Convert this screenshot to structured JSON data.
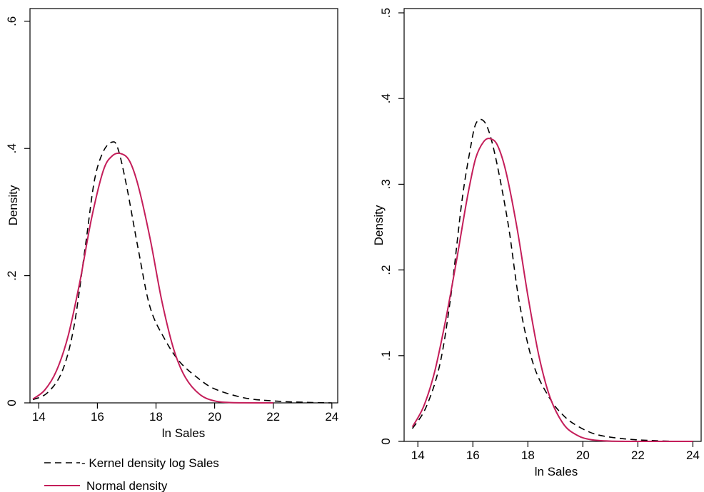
{
  "chart_data": [
    {
      "type": "line",
      "xlabel": "ln Sales",
      "ylabel": "Density",
      "xlim": [
        13.7,
        24.2
      ],
      "ylim": [
        0,
        0.62
      ],
      "xticks": [
        14,
        16,
        18,
        20,
        22,
        24
      ],
      "xtick_labels": [
        "14",
        "16",
        "18",
        "20",
        "22",
        "24"
      ],
      "yticks": [
        0,
        0.2,
        0.4,
        0.6
      ],
      "ytick_labels": [
        "0",
        ".2",
        ".4",
        ".6"
      ],
      "series": [
        {
          "name": "Kernel density log Sales",
          "style": "dashed",
          "color": "#000000",
          "x": [
            13.8,
            14.3,
            14.8,
            15.2,
            15.6,
            15.9,
            16.2,
            16.5,
            16.7,
            17.0,
            17.4,
            17.8,
            18.3,
            18.8,
            19.4,
            20.0,
            21.0,
            22.0,
            23.0,
            24.0
          ],
          "y": [
            0.005,
            0.016,
            0.05,
            0.12,
            0.25,
            0.35,
            0.395,
            0.41,
            0.4,
            0.34,
            0.24,
            0.15,
            0.1,
            0.065,
            0.04,
            0.022,
            0.008,
            0.003,
            0.001,
            0.0
          ]
        },
        {
          "name": "Normal density",
          "style": "solid",
          "color": "#c41e5a",
          "x": [
            13.8,
            14.2,
            14.6,
            15.0,
            15.4,
            15.8,
            16.2,
            16.5,
            16.8,
            17.1,
            17.4,
            17.8,
            18.2,
            18.6,
            19.0,
            19.5,
            20.0,
            20.5,
            21.0,
            22.0
          ],
          "y": [
            0.006,
            0.02,
            0.05,
            0.105,
            0.19,
            0.29,
            0.365,
            0.388,
            0.392,
            0.38,
            0.34,
            0.258,
            0.16,
            0.085,
            0.04,
            0.013,
            0.003,
            0.0006,
            0.0001,
            0.0
          ]
        }
      ],
      "legend": {
        "position": "bottom-left",
        "items": [
          {
            "label": "- Kernel density log Sales",
            "style": "dashed",
            "color": "#000000"
          },
          {
            "label": "Normal density",
            "style": "solid",
            "color": "#c41e5a"
          }
        ]
      }
    },
    {
      "type": "line",
      "xlabel": "ln Sales",
      "ylabel": "Density",
      "xlim": [
        13.5,
        24.3
      ],
      "ylim": [
        0,
        0.505
      ],
      "xticks": [
        14,
        16,
        18,
        20,
        22,
        24
      ],
      "xtick_labels": [
        "14",
        "16",
        "18",
        "20",
        "22",
        "24"
      ],
      "yticks": [
        0,
        0.1,
        0.2,
        0.3,
        0.4,
        0.5
      ],
      "ytick_labels": [
        "0",
        ".1",
        ".2",
        ".3",
        ".4",
        ".5"
      ],
      "series": [
        {
          "name": "Kernel density log Sales",
          "style": "dashed",
          "color": "#000000",
          "x": [
            13.8,
            14.3,
            14.8,
            15.2,
            15.6,
            15.9,
            16.1,
            16.35,
            16.6,
            16.9,
            17.3,
            17.7,
            18.2,
            18.8,
            19.3,
            19.8,
            20.5,
            21.5,
            22.5,
            23.5,
            24.0
          ],
          "y": [
            0.015,
            0.04,
            0.09,
            0.17,
            0.28,
            0.34,
            0.37,
            0.375,
            0.36,
            0.32,
            0.25,
            0.16,
            0.09,
            0.05,
            0.03,
            0.018,
            0.008,
            0.003,
            0.001,
            0.0,
            0.0
          ]
        },
        {
          "name": "Normal density",
          "style": "solid",
          "color": "#c41e5a",
          "x": [
            13.8,
            14.2,
            14.6,
            15.0,
            15.4,
            15.8,
            16.1,
            16.4,
            16.65,
            16.9,
            17.2,
            17.6,
            18.0,
            18.4,
            18.8,
            19.3,
            19.8,
            20.3,
            21.0,
            22.0,
            23.0,
            24.0
          ],
          "y": [
            0.017,
            0.04,
            0.08,
            0.14,
            0.21,
            0.285,
            0.33,
            0.35,
            0.353,
            0.345,
            0.315,
            0.25,
            0.17,
            0.1,
            0.052,
            0.02,
            0.007,
            0.002,
            0.0003,
            0.0,
            0.0,
            0.0
          ]
        }
      ]
    }
  ]
}
